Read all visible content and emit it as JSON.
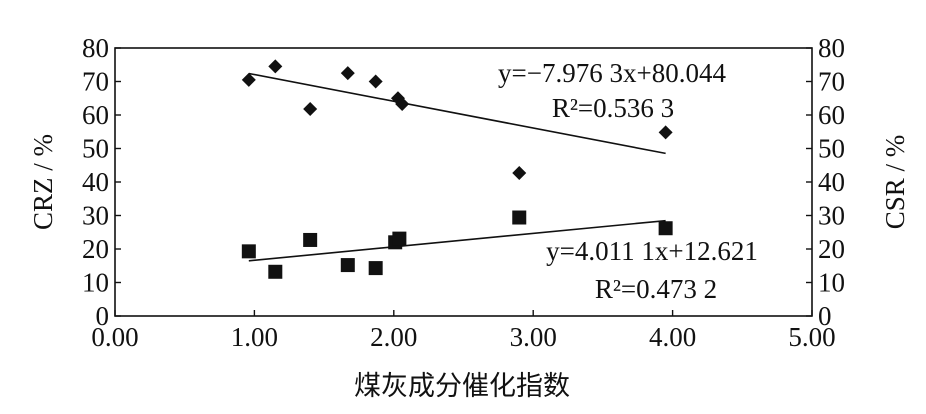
{
  "chart_data": {
    "type": "scatter",
    "xlabel": "煤灰成分催化指数",
    "ylabel_left": "CRZ / %",
    "ylabel_right": "CSR / %",
    "xlim": [
      0,
      5
    ],
    "ylim": [
      0,
      80
    ],
    "x_ticks": [
      "0.00",
      "1.00",
      "2.00",
      "3.00",
      "4.00",
      "5.00"
    ],
    "y_ticks": [
      "0",
      "10",
      "20",
      "30",
      "40",
      "50",
      "60",
      "70",
      "80"
    ],
    "grid": false,
    "series": [
      {
        "marker": "diamond",
        "points": [
          {
            "x": 0.96,
            "y": 70.5
          },
          {
            "x": 1.15,
            "y": 74.5
          },
          {
            "x": 1.4,
            "y": 61.8
          },
          {
            "x": 1.67,
            "y": 72.5
          },
          {
            "x": 1.87,
            "y": 70.0
          },
          {
            "x": 2.03,
            "y": 65.0
          },
          {
            "x": 2.06,
            "y": 63.3
          },
          {
            "x": 2.9,
            "y": 42.7
          },
          {
            "x": 3.95,
            "y": 54.8
          }
        ],
        "trend": {
          "x_range": [
            0.96,
            3.95
          ],
          "slope": -7.9763,
          "intercept": 80.044,
          "equation": "y=−7.976 3x+80.044",
          "r2": "R²=0.536 3"
        }
      },
      {
        "marker": "square",
        "points": [
          {
            "x": 0.96,
            "y": 19.3
          },
          {
            "x": 1.15,
            "y": 13.2
          },
          {
            "x": 1.4,
            "y": 22.7
          },
          {
            "x": 1.67,
            "y": 15.2
          },
          {
            "x": 1.87,
            "y": 14.3
          },
          {
            "x": 2.01,
            "y": 22.0
          },
          {
            "x": 2.04,
            "y": 23.1
          },
          {
            "x": 2.9,
            "y": 29.4
          },
          {
            "x": 3.95,
            "y": 26.2
          }
        ],
        "trend": {
          "x_range": [
            0.96,
            3.95
          ],
          "slope": 4.0111,
          "intercept": 12.621,
          "equation": "y=4.011 1x+12.621",
          "r2": "R²=0.473 2"
        }
      }
    ]
  }
}
